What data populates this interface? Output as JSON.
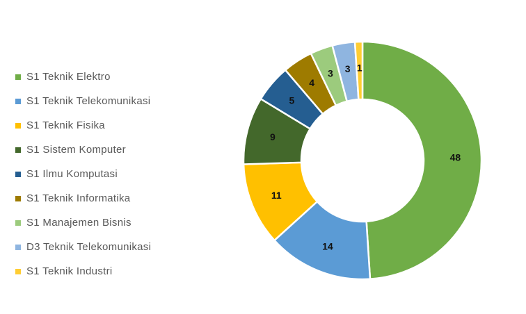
{
  "chart_data": {
    "type": "pie",
    "subtype": "donut",
    "legend_position": "left",
    "categories": [
      "S1 Teknik Elektro",
      "S1 Teknik Telekomunikasi",
      "S1 Teknik Fisika",
      "S1 Sistem Komputer",
      "S1 Ilmu Komputasi",
      "S1 Teknik Informatika",
      "S1 Manajemen Bisnis",
      "D3 Teknik Telekomunikasi",
      "S1 Teknik Industri"
    ],
    "values": [
      48,
      14,
      11,
      9,
      5,
      4,
      3,
      3,
      1
    ],
    "colors": [
      "#70AD47",
      "#5B9BD5",
      "#FFC000",
      "#43682B",
      "#255E91",
      "#9E7B00",
      "#9CCB7D",
      "#8FB5E0",
      "#FFCD33"
    ]
  }
}
